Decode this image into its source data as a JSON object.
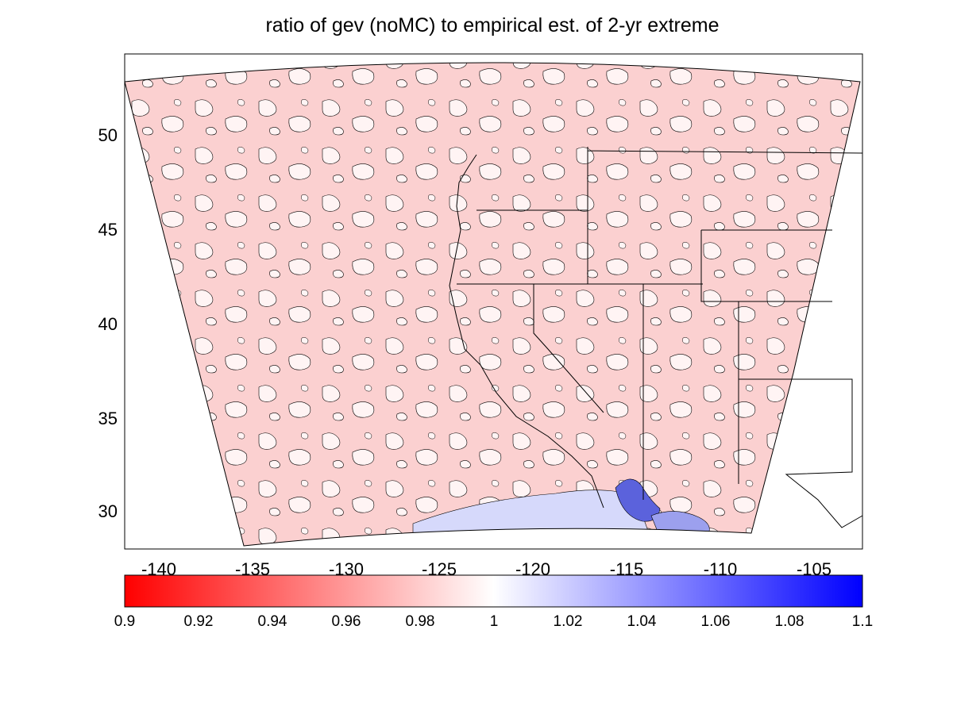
{
  "title": "ratio of gev (noMC) to empirical est. of 2-yr extreme",
  "chart_data": {
    "type": "heatmap",
    "title": "ratio of gev (noMC) to empirical est. of 2-yr extreme",
    "xlabel": "",
    "ylabel": "",
    "xlim": [
      -142,
      -102.5
    ],
    "ylim": [
      27.7,
      54.2
    ],
    "xticks": [
      "-140",
      "-135",
      "-130",
      "-125",
      "-120",
      "-115",
      "-110",
      "-105"
    ],
    "xtick_values": [
      -140,
      -135,
      -130,
      -125,
      -120,
      -115,
      -110,
      -105
    ],
    "yticks": [
      "50",
      "45",
      "40",
      "35",
      "30"
    ],
    "ytick_values": [
      50,
      45,
      40,
      35,
      30
    ],
    "colorbar": {
      "range": [
        0.9,
        1.1
      ],
      "ticks": [
        "0.9",
        "0.92",
        "0.94",
        "0.96",
        "0.98",
        "1",
        "1.02",
        "1.04",
        "1.06",
        "1.08",
        "1.1"
      ],
      "colors": {
        "low": "#ff0000",
        "mid": "#ffffff",
        "high": "#0000ff"
      }
    },
    "dominant_value": 0.98,
    "regions": [
      {
        "name": "pink field (ratio < 1)",
        "value": 0.985
      },
      {
        "name": "blue band Southern California",
        "value": 1.02
      },
      {
        "name": "blue core lower Colorado River",
        "value": 1.05
      }
    ],
    "grid": false,
    "legend": "colorbar below"
  }
}
